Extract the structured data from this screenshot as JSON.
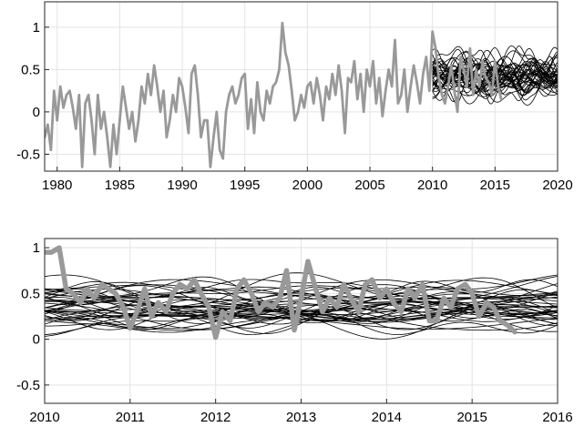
{
  "chart_data": [
    {
      "type": "line",
      "title": "",
      "xlabel": "",
      "ylabel": "",
      "xlim": [
        1979,
        2020
      ],
      "ylim": [
        -0.7,
        1.3
      ],
      "xticks": [
        1980,
        1985,
        1990,
        1995,
        2000,
        2005,
        2010,
        2015,
        2020
      ],
      "yticks": [
        -0.5,
        0,
        0.5,
        1
      ],
      "ytick_labels": [
        "-0.5",
        "0",
        "0.5",
        "1"
      ],
      "grid": true,
      "legend": "none",
      "series": [
        {
          "role": "observed",
          "color": "#999999",
          "x": [
            1979.0,
            1979.25,
            1979.5,
            1979.75,
            1980.0,
            1980.25,
            1980.5,
            1980.75,
            1981.0,
            1981.25,
            1981.5,
            1981.75,
            1982.0,
            1982.25,
            1982.5,
            1982.75,
            1983.0,
            1983.25,
            1983.5,
            1983.75,
            1984.0,
            1984.25,
            1984.5,
            1984.75,
            1985.0,
            1985.25,
            1985.5,
            1985.75,
            1986.0,
            1986.25,
            1986.5,
            1986.75,
            1987.0,
            1987.25,
            1987.5,
            1987.75,
            1988.0,
            1988.25,
            1988.5,
            1988.75,
            1989.0,
            1989.25,
            1989.5,
            1989.75,
            1990.0,
            1990.25,
            1990.5,
            1990.75,
            1991.0,
            1991.25,
            1991.5,
            1991.75,
            1992.0,
            1992.25,
            1992.5,
            1992.75,
            1993.0,
            1993.25,
            1993.5,
            1993.75,
            1994.0,
            1994.25,
            1994.5,
            1994.75,
            1995.0,
            1995.25,
            1995.5,
            1995.75,
            1996.0,
            1996.25,
            1996.5,
            1996.75,
            1997.0,
            1997.25,
            1997.5,
            1997.75,
            1998.0,
            1998.25,
            1998.5,
            1998.75,
            1999.0,
            1999.25,
            1999.5,
            1999.75,
            2000.0,
            2000.25,
            2000.5,
            2000.75,
            2001.0,
            2001.25,
            2001.5,
            2001.75,
            2002.0,
            2002.25,
            2002.5,
            2002.75,
            2003.0,
            2003.25,
            2003.5,
            2003.75,
            2004.0,
            2004.25,
            2004.5,
            2004.75,
            2005.0,
            2005.25,
            2005.5,
            2005.75,
            2006.0,
            2006.25,
            2006.5,
            2006.75,
            2007.0,
            2007.25,
            2007.5,
            2007.75,
            2008.0,
            2008.25,
            2008.5,
            2008.75,
            2009.0,
            2009.25,
            2009.5,
            2009.75,
            2010.0,
            2010.25,
            2010.5,
            2010.75,
            2011.0,
            2011.25,
            2011.5,
            2011.75,
            2012.0,
            2012.25,
            2012.5,
            2012.75,
            2013.0,
            2013.25,
            2013.5,
            2013.75,
            2014.0,
            2014.25,
            2014.5,
            2014.75,
            2015.0,
            2015.25,
            2015.5
          ],
          "y": [
            -0.3,
            -0.15,
            -0.45,
            0.25,
            -0.1,
            0.3,
            0.05,
            0.2,
            0.25,
            0.05,
            -0.2,
            0.2,
            -0.65,
            0.1,
            0.2,
            -0.1,
            -0.5,
            0.2,
            -0.2,
            0.0,
            -0.3,
            -0.65,
            -0.15,
            -0.5,
            -0.1,
            0.3,
            0.05,
            -0.2,
            0.0,
            -0.35,
            -0.1,
            0.3,
            0.1,
            0.45,
            0.2,
            0.55,
            0.3,
            0.0,
            0.25,
            -0.3,
            -0.1,
            0.2,
            0.0,
            0.4,
            0.3,
            0.05,
            -0.25,
            0.45,
            0.55,
            0.2,
            -0.3,
            -0.1,
            -0.1,
            -0.65,
            -0.3,
            0.0,
            -0.45,
            -0.55,
            0.0,
            0.2,
            0.3,
            0.1,
            0.2,
            0.4,
            0.45,
            -0.2,
            0.15,
            -0.25,
            0.35,
            0.0,
            -0.1,
            0.25,
            0.1,
            0.3,
            0.35,
            0.5,
            1.05,
            0.7,
            0.55,
            0.25,
            -0.1,
            0.0,
            0.2,
            0.05,
            0.3,
            0.35,
            0.1,
            0.4,
            0.2,
            -0.1,
            0.3,
            0.15,
            0.45,
            0.2,
            0.55,
            0.25,
            -0.25,
            0.4,
            0.35,
            0.6,
            0.15,
            0.45,
            0.0,
            0.5,
            0.3,
            0.6,
            0.1,
            0.4,
            -0.05,
            0.25,
            0.5,
            0.3,
            0.85,
            0.1,
            0.2,
            0.5,
            0.0,
            0.3,
            0.55,
            0.35,
            0.1,
            0.45,
            0.65,
            0.25,
            0.95,
            0.75,
            0.4,
            0.2,
            0.1,
            0.3,
            0.55,
            0.25,
            0.0,
            0.65,
            0.5,
            0.3,
            0.75,
            0.2,
            0.5,
            0.3,
            0.6,
            0.4,
            0.35,
            0.2,
            0.6,
            0.3,
            0.15
          ]
        }
      ],
      "ensemble": {
        "role": "forecast-ensemble",
        "color": "#000000",
        "count": 40,
        "x_start": 2010.0,
        "x_end": 2020.0,
        "y_min": 0.15,
        "y_max": 0.75
      }
    },
    {
      "type": "line",
      "title": "",
      "xlabel": "",
      "ylabel": "",
      "xlim": [
        2010,
        2016
      ],
      "ylim": [
        -0.7,
        1.1
      ],
      "xticks": [
        2010,
        2011,
        2012,
        2013,
        2014,
        2015,
        2016
      ],
      "yticks": [
        -0.5,
        0,
        0.5,
        1
      ],
      "ytick_labels": [
        "-0.5",
        "0",
        "0.5",
        "1"
      ],
      "grid": true,
      "legend": "none",
      "series": [
        {
          "role": "observed",
          "color": "#999999",
          "x": [
            2010.0,
            2010.08,
            2010.17,
            2010.25,
            2010.33,
            2010.42,
            2010.5,
            2010.58,
            2010.67,
            2010.75,
            2010.83,
            2010.92,
            2011.0,
            2011.08,
            2011.17,
            2011.25,
            2011.33,
            2011.42,
            2011.5,
            2011.58,
            2011.67,
            2011.75,
            2011.83,
            2011.92,
            2012.0,
            2012.08,
            2012.17,
            2012.25,
            2012.33,
            2012.42,
            2012.5,
            2012.58,
            2012.67,
            2012.75,
            2012.83,
            2012.92,
            2013.0,
            2013.08,
            2013.17,
            2013.25,
            2013.33,
            2013.42,
            2013.5,
            2013.58,
            2013.67,
            2013.75,
            2013.83,
            2013.92,
            2014.0,
            2014.08,
            2014.17,
            2014.25,
            2014.33,
            2014.42,
            2014.5,
            2014.58,
            2014.67,
            2014.75,
            2014.83,
            2014.92,
            2015.0,
            2015.08,
            2015.17,
            2015.25,
            2015.33,
            2015.42,
            2015.5
          ],
          "y": [
            0.95,
            0.95,
            1.0,
            0.55,
            0.5,
            0.4,
            0.55,
            0.45,
            0.6,
            0.55,
            0.5,
            0.35,
            0.12,
            0.3,
            0.55,
            0.25,
            0.4,
            0.3,
            0.5,
            0.6,
            0.55,
            0.65,
            0.5,
            0.35,
            0.02,
            0.3,
            0.2,
            0.55,
            0.65,
            0.5,
            0.3,
            0.4,
            0.35,
            0.45,
            0.75,
            0.1,
            0.45,
            0.85,
            0.55,
            0.3,
            0.45,
            0.35,
            0.6,
            0.45,
            0.3,
            0.6,
            0.65,
            0.45,
            0.55,
            0.4,
            0.3,
            0.55,
            0.45,
            0.6,
            0.2,
            0.2,
            0.45,
            0.35,
            0.55,
            0.6,
            0.5,
            0.25,
            0.4,
            0.35,
            0.2,
            0.15,
            0.08
          ]
        }
      ],
      "ensemble": {
        "role": "forecast-ensemble",
        "color": "#000000",
        "count": 40,
        "x_start": 2010.0,
        "x_end": 2016.0,
        "y_min": 0.05,
        "y_max": 0.7
      }
    }
  ]
}
